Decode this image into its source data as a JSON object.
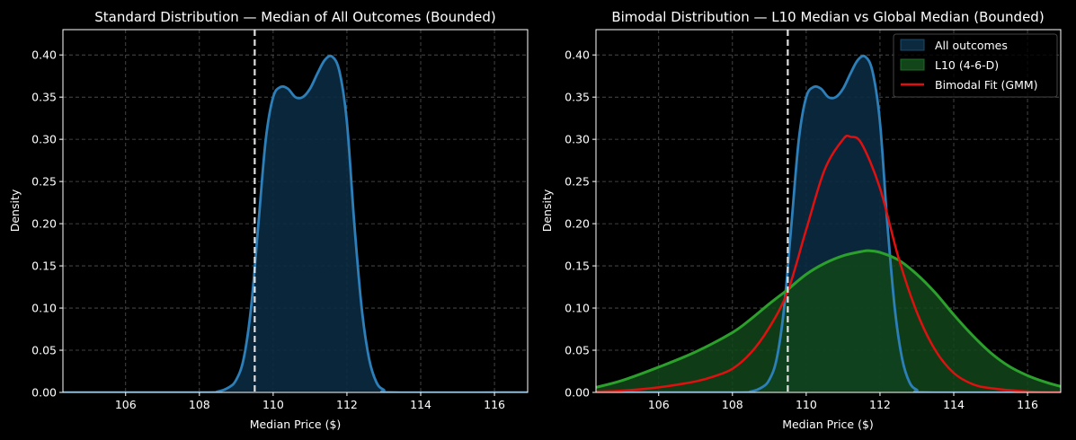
{
  "colors": {
    "background": "#000000",
    "all_outcomes_line": "#2c7fb8",
    "all_outcomes_fill": "#0b2a40",
    "l10_line": "#2ca02c",
    "l10_fill": "#12461a",
    "gmm_line": "#e01010",
    "vline": "#e0e0e0",
    "grid": "#555555",
    "spine": "#ffffff"
  },
  "chart_data": [
    {
      "type": "area",
      "title": "Standard Distribution — Median of All Outcomes (Bounded)",
      "xlabel": "Median Price ($)",
      "ylabel": "Density",
      "xlim": [
        104.3,
        116.9
      ],
      "ylim": [
        0,
        0.43
      ],
      "xticks": [
        106,
        108,
        110,
        112,
        114,
        116
      ],
      "xtick_labels": [
        "106",
        "108",
        "110",
        "112",
        "114",
        "116"
      ],
      "yticks": [
        0,
        0.05,
        0.1,
        0.15,
        0.2,
        0.25,
        0.3,
        0.35,
        0.4
      ],
      "ytick_labels": [
        "0.00",
        "0.05",
        "0.10",
        "0.15",
        "0.20",
        "0.25",
        "0.30",
        "0.35",
        "0.40"
      ],
      "grid": true,
      "vline_x": 109.5,
      "series": [
        {
          "key": "all",
          "x": [
            104.3,
            108.0,
            108.5,
            108.8,
            109.0,
            109.2,
            109.4,
            109.6,
            109.8,
            110.0,
            110.2,
            110.4,
            110.6,
            110.8,
            111.0,
            111.2,
            111.4,
            111.6,
            111.8,
            112.0,
            112.2,
            112.4,
            112.6,
            112.8,
            113.0,
            113.3,
            116.9
          ],
          "y": [
            0.0,
            0.0,
            0.001,
            0.006,
            0.015,
            0.04,
            0.1,
            0.2,
            0.3,
            0.35,
            0.362,
            0.36,
            0.35,
            0.35,
            0.36,
            0.378,
            0.394,
            0.398,
            0.38,
            0.32,
            0.2,
            0.1,
            0.04,
            0.012,
            0.003,
            0.0,
            0.0
          ]
        }
      ]
    },
    {
      "type": "area",
      "title": "Bimodal Distribution — L10 Median vs Global Median (Bounded)",
      "xlabel": "Median Price ($)",
      "ylabel": "Density",
      "xlim": [
        104.3,
        116.9
      ],
      "ylim": [
        0,
        0.43
      ],
      "xticks": [
        106,
        108,
        110,
        112,
        114,
        116
      ],
      "xtick_labels": [
        "106",
        "108",
        "110",
        "112",
        "114",
        "116"
      ],
      "yticks": [
        0,
        0.05,
        0.1,
        0.15,
        0.2,
        0.25,
        0.3,
        0.35,
        0.4
      ],
      "ytick_labels": [
        "0.00",
        "0.05",
        "0.10",
        "0.15",
        "0.20",
        "0.25",
        "0.30",
        "0.35",
        "0.40"
      ],
      "grid": true,
      "vline_x": 109.5,
      "legend_placement": "top-right",
      "series": [
        {
          "key": "all",
          "name": "All outcomes",
          "x": [
            104.3,
            108.0,
            108.5,
            108.8,
            109.0,
            109.2,
            109.4,
            109.6,
            109.8,
            110.0,
            110.2,
            110.4,
            110.6,
            110.8,
            111.0,
            111.2,
            111.4,
            111.6,
            111.8,
            112.0,
            112.2,
            112.4,
            112.6,
            112.8,
            113.0,
            113.3,
            116.9
          ],
          "y": [
            0.0,
            0.0,
            0.001,
            0.006,
            0.015,
            0.04,
            0.1,
            0.2,
            0.3,
            0.35,
            0.362,
            0.36,
            0.35,
            0.35,
            0.36,
            0.378,
            0.394,
            0.398,
            0.38,
            0.32,
            0.2,
            0.1,
            0.04,
            0.012,
            0.003,
            0.0,
            0.0
          ]
        },
        {
          "key": "l10",
          "name": "L10 (4-6-D)",
          "x": [
            104.3,
            105.0,
            106.0,
            107.0,
            108.0,
            108.5,
            109.0,
            109.5,
            110.0,
            110.5,
            111.0,
            111.5,
            111.7,
            112.0,
            112.5,
            113.0,
            113.5,
            114.0,
            114.5,
            115.0,
            115.5,
            116.0,
            116.5,
            116.9
          ],
          "y": [
            0.006,
            0.014,
            0.03,
            0.048,
            0.071,
            0.087,
            0.105,
            0.122,
            0.14,
            0.153,
            0.162,
            0.167,
            0.168,
            0.166,
            0.157,
            0.14,
            0.118,
            0.092,
            0.068,
            0.047,
            0.031,
            0.02,
            0.012,
            0.007
          ]
        },
        {
          "key": "gmm",
          "name": "Bimodal Fit (GMM)",
          "x": [
            104.3,
            105.0,
            106.0,
            107.0,
            107.5,
            108.0,
            108.5,
            109.0,
            109.5,
            110.0,
            110.5,
            111.0,
            111.2,
            111.5,
            112.0,
            112.5,
            113.0,
            113.5,
            114.0,
            114.5,
            115.0,
            116.0,
            116.9
          ],
          "y": [
            0.001,
            0.002,
            0.006,
            0.013,
            0.019,
            0.028,
            0.047,
            0.077,
            0.12,
            0.193,
            0.264,
            0.3,
            0.303,
            0.295,
            0.242,
            0.16,
            0.095,
            0.05,
            0.023,
            0.01,
            0.005,
            0.001,
            0.0
          ]
        }
      ]
    }
  ]
}
